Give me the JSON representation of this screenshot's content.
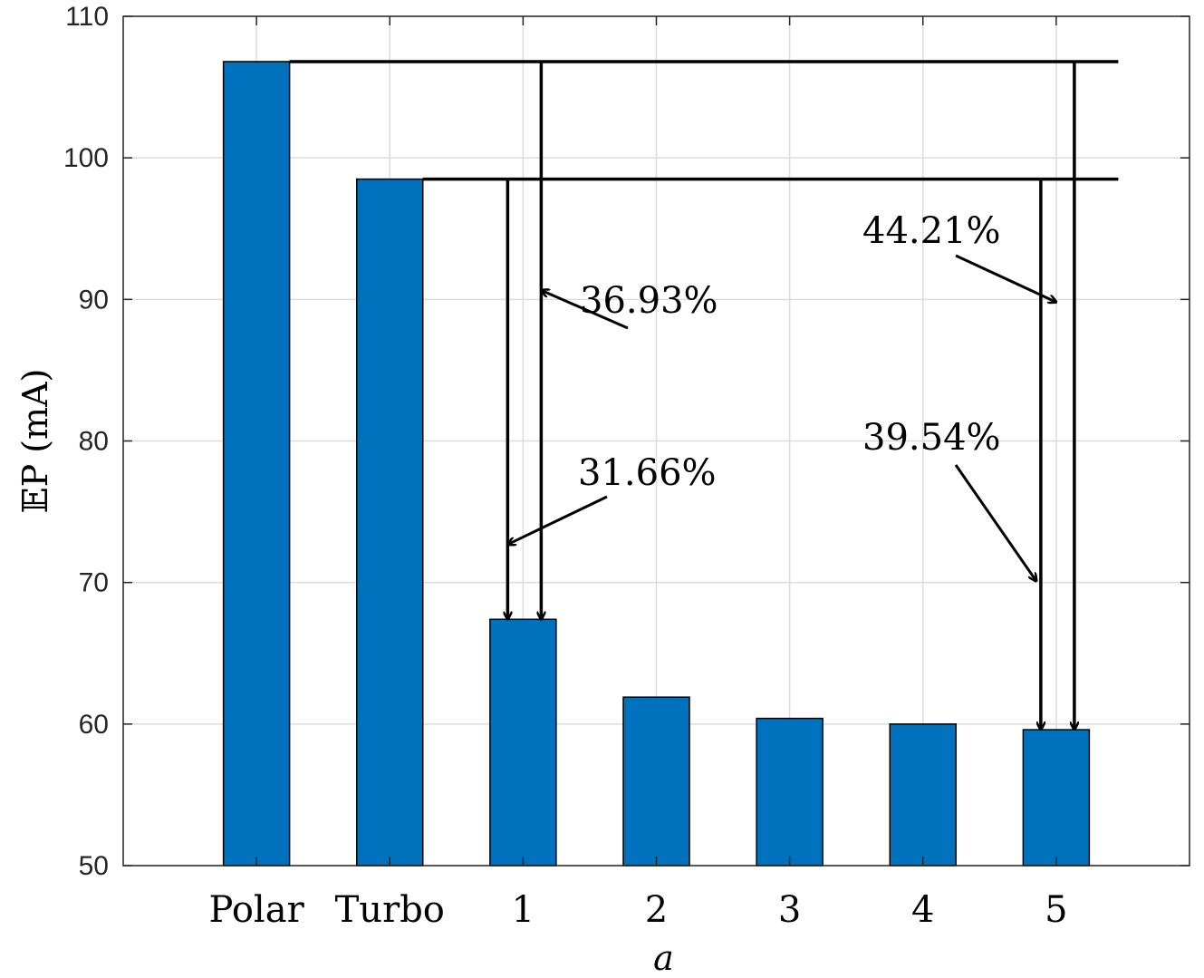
{
  "chart_data": {
    "type": "bar",
    "categories": [
      "Polar",
      "Turbo",
      "1",
      "2",
      "3",
      "4",
      "5"
    ],
    "values": [
      106.8,
      98.5,
      67.4,
      61.9,
      60.4,
      60.0,
      59.6
    ],
    "xlabel": "a",
    "ylabel": "𝔼P (mA)",
    "ylim": [
      50,
      110
    ],
    "yticks": [
      50,
      60,
      70,
      80,
      90,
      100,
      110
    ],
    "grid": true,
    "bar_color": "#0072BD",
    "annotations": [
      {
        "text": "36.93%",
        "from": "Polar",
        "to": "1"
      },
      {
        "text": "31.66%",
        "from": "Turbo",
        "to": "1"
      },
      {
        "text": "44.21%",
        "from": "Polar",
        "to": "5"
      },
      {
        "text": "39.54%",
        "from": "Turbo",
        "to": "5"
      }
    ]
  }
}
